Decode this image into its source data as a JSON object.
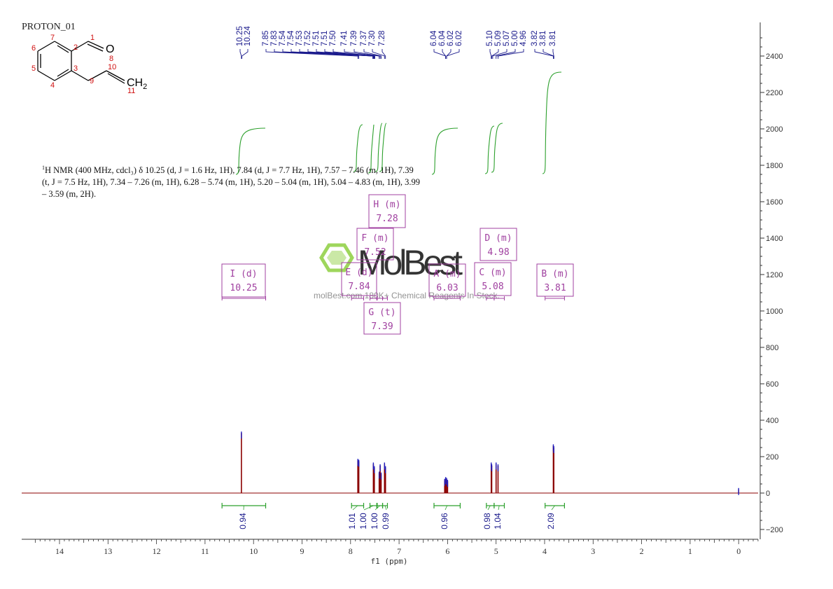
{
  "title": "PROTON_01",
  "description": {
    "prefix": "1",
    "text": "H NMR (400 MHz, cdcl₃) δ 10.25 (d, J = 1.6 Hz, 1H), 7.84 (d, J = 7.7 Hz, 1H), 7.57 – 7.46 (m, 1H), 7.39 (t, J = 7.5 Hz, 1H), 7.34 – 7.26 (m, 1H), 6.28 – 5.74 (m, 1H), 5.20 – 5.04 (m, 1H), 5.04 – 4.83 (m, 1H), 3.99 – 3.59 (m, 2H)."
  },
  "structure": {
    "atoms": [
      "1",
      "2",
      "3",
      "4",
      "5",
      "6",
      "7",
      "8",
      "9",
      "10",
      "11"
    ],
    "oxygen": "O",
    "ch2": "CH",
    "ch2_sub": "2"
  },
  "watermark": {
    "brand": "MolBest",
    "tagline": "molBest.com 180K+ Chemical Reagents In Stock."
  },
  "colors": {
    "spectrum": "#8b0000",
    "integral": "#2ca02c",
    "peak_label": "#1a1a8c",
    "multiplet_box": "#a040a0",
    "axis": "#333333"
  },
  "chart_data": {
    "type": "line",
    "xlabel": "f1 (ppm)",
    "xlim": [
      14.8,
      -0.4
    ],
    "x_ticks": [
      "14",
      "13",
      "12",
      "11",
      "10",
      "9",
      "8",
      "7",
      "6",
      "5",
      "4",
      "3",
      "2",
      "1",
      "0"
    ],
    "ylim": [
      -250,
      2600
    ],
    "y_ticks": [
      "2400",
      "2200",
      "2000",
      "1800",
      "1600",
      "1400",
      "1200",
      "1000",
      "800",
      "600",
      "400",
      "200",
      "0",
      "-200"
    ],
    "peak_labels": [
      "10.25",
      "10.24",
      "7.85",
      "7.83",
      "7.54",
      "7.54",
      "7.53",
      "7.52",
      "7.51",
      "7.51",
      "7.50",
      "7.41",
      "7.39",
      "7.37",
      "7.30",
      "7.28",
      "6.04",
      "6.04",
      "6.02",
      "6.02",
      "5.10",
      "5.09",
      "5.07",
      "5.00",
      "4.96",
      "3.82",
      "3.81",
      "3.81"
    ],
    "peaks": [
      {
        "ppm": 10.25,
        "height": 330
      },
      {
        "ppm": 7.85,
        "height": 180
      },
      {
        "ppm": 7.83,
        "height": 175
      },
      {
        "ppm": 7.53,
        "height": 160
      },
      {
        "ppm": 7.51,
        "height": 140
      },
      {
        "ppm": 7.41,
        "height": 110
      },
      {
        "ppm": 7.39,
        "height": 150
      },
      {
        "ppm": 7.37,
        "height": 105
      },
      {
        "ppm": 7.3,
        "height": 160
      },
      {
        "ppm": 7.28,
        "height": 140
      },
      {
        "ppm": 6.06,
        "height": 70
      },
      {
        "ppm": 6.04,
        "height": 80
      },
      {
        "ppm": 6.02,
        "height": 75
      },
      {
        "ppm": 6.0,
        "height": 65
      },
      {
        "ppm": 5.1,
        "height": 160
      },
      {
        "ppm": 5.09,
        "height": 150
      },
      {
        "ppm": 5.0,
        "height": 160
      },
      {
        "ppm": 4.96,
        "height": 150
      },
      {
        "ppm": 3.82,
        "height": 260
      },
      {
        "ppm": 3.81,
        "height": 250
      },
      {
        "ppm": 0.0,
        "height": 20
      }
    ],
    "integrations": [
      {
        "value": "0.94",
        "from": 10.65,
        "to": 9.75
      },
      {
        "value": "1.01",
        "from": 7.98,
        "to": 7.73
      },
      {
        "value": "1.00",
        "from": 7.6,
        "to": 7.46
      },
      {
        "value": "1.00",
        "from": 7.45,
        "to": 7.34
      },
      {
        "value": "0.99",
        "from": 7.34,
        "to": 7.24
      },
      {
        "value": "0.96",
        "from": 6.28,
        "to": 5.74
      },
      {
        "value": "0.98",
        "from": 5.2,
        "to": 5.04
      },
      {
        "value": "1.04",
        "from": 5.04,
        "to": 4.83
      },
      {
        "value": "2.09",
        "from": 3.99,
        "to": 3.59
      }
    ],
    "multiplets": [
      {
        "label": "I (d)",
        "shift": "10.25",
        "from": 10.65,
        "to": 9.75
      },
      {
        "label": "E (d)",
        "shift": "7.84",
        "from": 7.98,
        "to": 7.73
      },
      {
        "label": "F (m)",
        "shift": "7.52",
        "from": 7.6,
        "to": 7.46
      },
      {
        "label": "H (m)",
        "shift": "7.28",
        "from": 7.34,
        "to": 7.24
      },
      {
        "label": "G (t)",
        "shift": "7.39",
        "from": 7.45,
        "to": 7.34
      },
      {
        "label": "A (m)",
        "shift": "6.03",
        "from": 6.28,
        "to": 5.74
      },
      {
        "label": "C (m)",
        "shift": "5.08",
        "from": 5.2,
        "to": 5.04
      },
      {
        "label": "D (m)",
        "shift": "4.98",
        "from": 5.04,
        "to": 4.83
      },
      {
        "label": "B (m)",
        "shift": "3.81",
        "from": 3.99,
        "to": 3.59
      }
    ]
  }
}
